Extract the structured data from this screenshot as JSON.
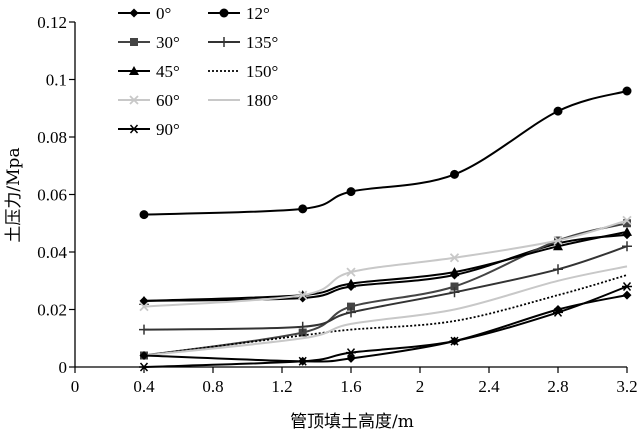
{
  "chart_data": {
    "type": "line",
    "xlabel": "管顶填土高度/m",
    "ylabel": "土压力/Mpa",
    "xlim": [
      0,
      3.2
    ],
    "ylim": [
      0,
      0.12
    ],
    "xticks": [
      0,
      0.4,
      0.8,
      1.2,
      1.6,
      2,
      2.4,
      2.8,
      3.2
    ],
    "yticks": [
      0,
      0.02,
      0.04,
      0.06,
      0.08,
      0.1,
      0.12
    ],
    "x": [
      0.4,
      1.32,
      1.6,
      2.2,
      2.8,
      3.2
    ],
    "grid": false,
    "legend_position": "top-left, two columns",
    "series": [
      {
        "name": "0°",
        "values": [
          0.023,
          0.024,
          0.028,
          0.032,
          0.043,
          0.046
        ],
        "color": "#000000",
        "marker": "diamond",
        "dash": "solid"
      },
      {
        "name": "30°",
        "values": [
          0.004,
          0.012,
          0.021,
          0.028,
          0.044,
          0.05
        ],
        "color": "#444444",
        "marker": "square",
        "dash": "solid"
      },
      {
        "name": "45°",
        "values": [
          0.023,
          0.025,
          0.029,
          0.033,
          0.042,
          0.047
        ],
        "color": "#000000",
        "marker": "triangle",
        "dash": "solid"
      },
      {
        "name": "60°",
        "values": [
          0.021,
          0.025,
          0.033,
          0.038,
          0.044,
          0.051
        ],
        "color": "#c8c8c8",
        "marker": "x",
        "dash": "solid"
      },
      {
        "name": "90°",
        "values": [
          0.0,
          0.002,
          0.005,
          0.009,
          0.019,
          0.028
        ],
        "color": "#000000",
        "marker": "asterisk",
        "dash": "solid"
      },
      {
        "name": "12°",
        "values": [
          0.053,
          0.055,
          0.061,
          0.067,
          0.089,
          0.096
        ],
        "color": "#000000",
        "marker": "circle",
        "dash": "solid"
      },
      {
        "name": "135°",
        "values": [
          0.013,
          0.014,
          0.019,
          0.026,
          0.034,
          0.042
        ],
        "color": "#333333",
        "marker": "plus",
        "dash": "solid"
      },
      {
        "name": "150°",
        "values": [
          0.004,
          0.011,
          0.013,
          0.016,
          0.025,
          0.032
        ],
        "color": "#000000",
        "marker": "none",
        "dash": "dotted"
      },
      {
        "name": "180°",
        "values": [
          0.004,
          0.01,
          0.015,
          0.02,
          0.03,
          0.035
        ],
        "color": "#c8c8c8",
        "marker": "none",
        "dash": "solid"
      },
      {
        "name": "",
        "values": [
          0.004,
          0.002,
          0.003,
          0.009,
          0.02,
          0.025
        ],
        "color": "#000000",
        "marker": "diamond",
        "dash": "solid"
      }
    ],
    "legend_order": [
      0,
      5,
      1,
      6,
      2,
      7,
      3,
      8,
      4
    ]
  }
}
